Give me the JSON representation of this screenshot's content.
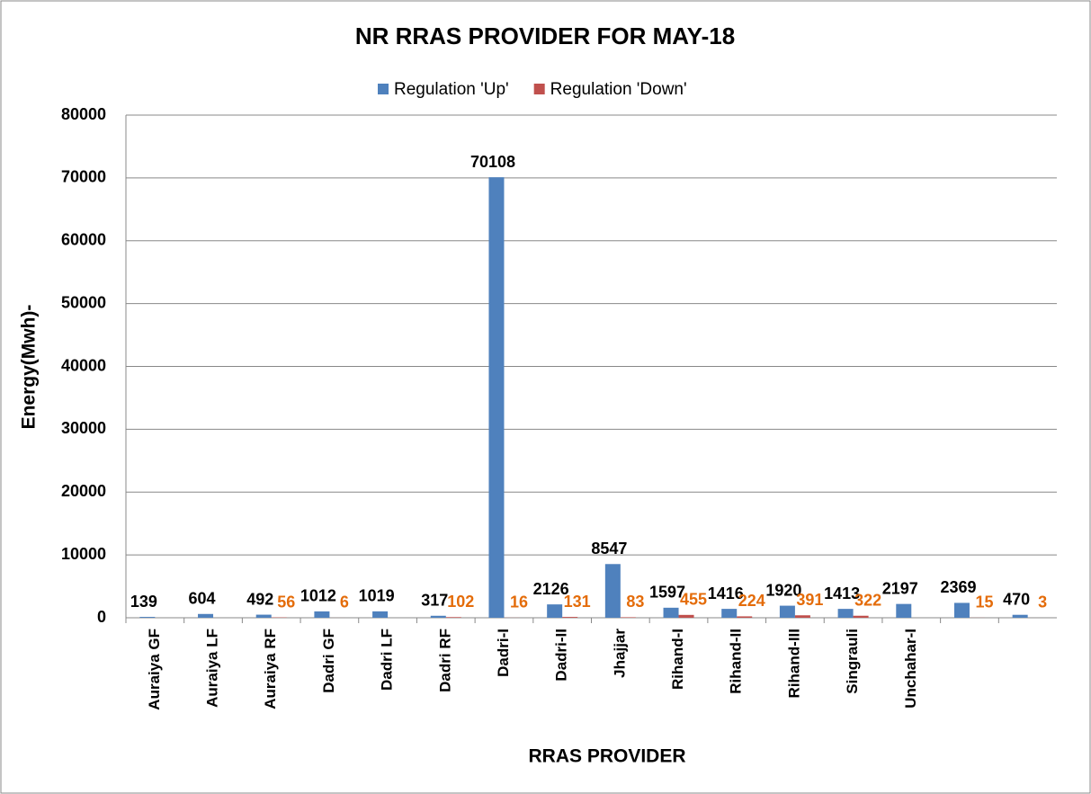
{
  "chart_data": {
    "type": "bar",
    "title": "NR RRAS PROVIDER FOR MAY-18",
    "x_label": "RRAS PROVIDER",
    "y_label": "Energy(Mwh)-",
    "categories": [
      "Auraiya GF",
      "Auraiya LF",
      "Auraiya RF",
      "Dadri GF",
      "Dadri LF",
      "Dadri RF",
      "Dadri-I",
      "Dadri-II",
      "Jhajjar",
      "Rihand-I",
      "Rihand-II",
      "Rihand-III",
      "Singrauli",
      "Unchahar-I",
      null,
      null
    ],
    "series": [
      {
        "name": "Regulation 'Up'",
        "color": "#4f81bd",
        "label_color": "#000000",
        "values": [
          139,
          604,
          492,
          1012,
          1019,
          317,
          70108,
          2126,
          8547,
          1597,
          1416,
          1920,
          1413,
          2197,
          2369,
          470
        ]
      },
      {
        "name": "Regulation 'Down'",
        "color": "#c0504d",
        "label_color": "#e46c0a",
        "values": [
          null,
          null,
          56,
          6,
          null,
          102,
          16,
          131,
          83,
          455,
          224,
          391,
          322,
          null,
          15,
          3
        ]
      }
    ],
    "ylim": [
      0,
      80000
    ],
    "yticks": [
      0,
      10000,
      20000,
      30000,
      40000,
      50000,
      60000,
      70000,
      80000
    ],
    "grid": true,
    "legend": "top"
  }
}
